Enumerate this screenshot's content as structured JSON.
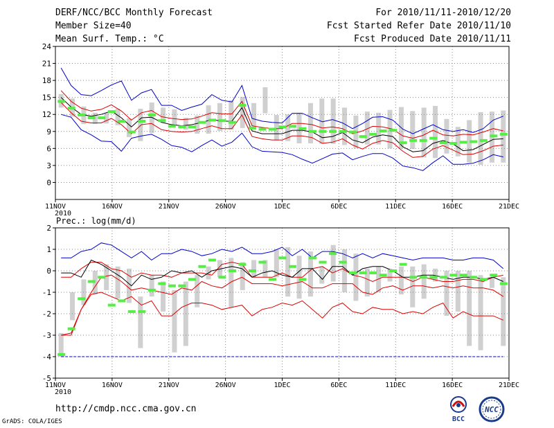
{
  "header": {
    "title": "DERF/NCC/BCC Monthly Forecast",
    "member_size": "Member Size=40",
    "variable1": "Mean Surf. Temp.: °C",
    "period": "For 2010/11/11-2010/12/20",
    "started": "Fcst Started Refer Date 2010/11/10",
    "produced": "Fcst Produced Date 2010/11/11"
  },
  "footer": {
    "url": "http://cmdp.ncc.cma.gov.cn",
    "grads": "GrADS: COLA/IGES",
    "logo_left_text": "BCC",
    "logo_right_text": "NCC"
  },
  "colors": {
    "ensemble_mean": "#000000",
    "inner_bound": "#dd0000",
    "outer_bound": "#0000cc",
    "observed": "#55ee44",
    "spread_box": "#d0d0d0",
    "grid": "#888888"
  },
  "chart_data": [
    {
      "type": "line",
      "title": "Mean Surf. Temp.: °C",
      "xlabel": "",
      "ylabel": "",
      "day_count": 40,
      "ylim": [
        -3,
        24
      ],
      "yticks": [
        0,
        3,
        6,
        9,
        12,
        15,
        18,
        21,
        24
      ],
      "x_tick_days": [
        0,
        5,
        10,
        15,
        20,
        25,
        30,
        35,
        40
      ],
      "x_tick_labels": [
        "11NOV",
        "16NOV",
        "21NOV",
        "26NOV",
        "1DEC",
        "6DEC",
        "11DEC",
        "16DEC",
        "21DEC"
      ],
      "year_label": "2010",
      "grid": true,
      "boxes": {
        "low": [
          13.2,
          11.6,
          10.3,
          10.3,
          10.4,
          10.1,
          8.0,
          7.3,
          8.7,
          10.5,
          10.1,
          9.3,
          8.6,
          8.6,
          9.1,
          9.3,
          9.6,
          9.5,
          12.2,
          7.4,
          7.3,
          6.9,
          6.9,
          6.8,
          6.8,
          6.6,
          6.0,
          6.7,
          6.7,
          6.0,
          6.0,
          5.9,
          4.4,
          4.3,
          5.1,
          4.6,
          3.5,
          3.1,
          3.5,
          3.5
        ],
        "high": [
          15.6,
          14.8,
          13.4,
          12.3,
          12.3,
          13.0,
          11.3,
          13.0,
          14.1,
          13.2,
          12.9,
          11.4,
          11.8,
          13.6,
          14.0,
          14.5,
          15.1,
          14.0,
          16.8,
          11.9,
          12.0,
          12.3,
          14.0,
          14.8,
          14.8,
          13.2,
          11.8,
          12.5,
          12.3,
          12.8,
          13.3,
          12.6,
          13.2,
          13.5,
          11.2,
          9.8,
          11.0,
          12.4,
          12.5,
          12.7
        ]
      },
      "series": [
        {
          "name": "upper-outer",
          "color": "#0000cc",
          "values": [
            20.2,
            17.1,
            15.5,
            15.3,
            16.2,
            17.2,
            17.9,
            14.5,
            15.8,
            16.4,
            13.6,
            13.6,
            12.7,
            13.3,
            13.8,
            15.5,
            14.5,
            14.2,
            17.1,
            11.3,
            10.8,
            10.6,
            10.5,
            12.2,
            12.2,
            11.4,
            10.7,
            11.1,
            10.5,
            9.5,
            10.4,
            11.5,
            11.6,
            11.0,
            9.4,
            8.6,
            9.4,
            10.2,
            9.3,
            9.0,
            9.3,
            8.8,
            9.5,
            11.0,
            11.7
          ]
        },
        {
          "name": "upper-inner",
          "color": "#dd0000",
          "values": [
            16.2,
            14.3,
            13.1,
            12.6,
            12.9,
            13.7,
            12.6,
            11.0,
            12.3,
            12.7,
            11.6,
            11.3,
            11.1,
            11.2,
            11.7,
            12.3,
            12.1,
            12.1,
            14.3,
            10.0,
            9.7,
            9.5,
            9.5,
            10.4,
            10.4,
            10.2,
            9.6,
            9.8,
            9.5,
            8.6,
            9.1,
            9.9,
            9.8,
            9.4,
            8.2,
            7.8,
            8.3,
            9.2,
            8.4,
            8.2,
            8.5,
            8.4,
            8.9,
            9.5,
            9.1
          ]
        },
        {
          "name": "ensemble-mean",
          "color": "#000000",
          "values": [
            15.0,
            13.3,
            12.0,
            11.7,
            12.0,
            12.6,
            11.4,
            9.8,
            11.4,
            11.5,
            10.6,
            10.2,
            10.0,
            10.2,
            10.6,
            11.1,
            10.8,
            10.8,
            13.2,
            9.1,
            8.6,
            8.6,
            8.6,
            9.2,
            9.2,
            8.9,
            7.9,
            8.1,
            8.8,
            7.5,
            7.0,
            8.0,
            8.4,
            8.1,
            6.3,
            5.4,
            5.6,
            6.9,
            7.4,
            6.8,
            5.6,
            5.8,
            6.7,
            7.6,
            7.7
          ]
        },
        {
          "name": "lower-inner",
          "color": "#dd0000",
          "values": [
            14.1,
            12.3,
            10.8,
            10.5,
            10.5,
            11.3,
            10.2,
            8.6,
            10.2,
            10.4,
            9.3,
            9.0,
            8.9,
            9.0,
            9.5,
            10.0,
            9.5,
            9.5,
            11.9,
            8.1,
            7.7,
            7.5,
            7.5,
            8.2,
            8.2,
            7.9,
            6.9,
            7.1,
            7.7,
            6.6,
            5.9,
            6.9,
            7.4,
            7.0,
            5.5,
            4.4,
            4.6,
            5.9,
            6.5,
            5.7,
            4.9,
            5.0,
            5.6,
            6.4,
            6.6
          ]
        },
        {
          "name": "lower-outer",
          "color": "#0000cc",
          "values": [
            12.0,
            11.5,
            9.3,
            8.4,
            7.3,
            7.2,
            5.5,
            7.8,
            8.2,
            8.5,
            7.6,
            6.5,
            6.2,
            5.4,
            6.5,
            7.5,
            6.4,
            7.1,
            8.7,
            6.3,
            5.5,
            5.4,
            5.3,
            4.9,
            4.1,
            3.4,
            4.2,
            5.0,
            5.2,
            4.0,
            4.6,
            5.1,
            5.1,
            4.3,
            2.9,
            2.6,
            2.1,
            3.5,
            4.7,
            3.2,
            3.2,
            3.4,
            4.0,
            4.9,
            4.5
          ]
        }
      ],
      "observed": [
        14.3,
        13.1,
        11.9,
        11.4,
        11.4,
        12.5,
        10.8,
        8.9,
        10.8,
        11.9,
        10.9,
        9.9,
        9.8,
        9.8,
        10.6,
        11.0,
        10.9,
        10.6,
        13.6,
        9.6,
        9.4,
        9.4,
        9.8,
        9.9,
        9.5,
        9.0,
        9.0,
        9.0,
        9.0,
        8.9,
        8.1,
        8.5,
        9.1,
        9.2,
        7.0,
        7.4,
        7.4,
        7.8,
        7.0,
        6.9,
        7.1,
        7.2,
        7.4,
        8.2,
        8.5
      ]
    },
    {
      "type": "line",
      "title": "Prec.: log(mm/d)",
      "xlabel": "",
      "ylabel": "",
      "day_count": 40,
      "ylim": [
        -5,
        2
      ],
      "yticks": [
        -5,
        -4,
        -3,
        -2,
        -1,
        0,
        1,
        2
      ],
      "x_tick_days": [
        0,
        5,
        10,
        15,
        20,
        25,
        30,
        35,
        40
      ],
      "x_tick_labels": [
        "11NOV",
        "16NOV",
        "21NOV",
        "26NOV",
        "1DEC",
        "6DEC",
        "11DEC",
        "16DEC",
        "21DEC"
      ],
      "year_label": "2010",
      "grid": true,
      "floor_value": -4,
      "boxes": {
        "low": [
          -4,
          -2.3,
          -1.6,
          -1.1,
          -0.9,
          -1.3,
          -1.5,
          -3.6,
          -1.2,
          -1.9,
          -3.8,
          -3.5,
          -1.7,
          -0.4,
          -0.3,
          -1.7,
          -0.9,
          -0.3,
          -0.3,
          -0.3,
          -1.2,
          -1.3,
          -1.2,
          -0.6,
          -0.5,
          -1.0,
          -1.4,
          -1.2,
          -1.0,
          -0.5,
          -1.1,
          -1.7,
          -1.3,
          -0.5,
          -2.1,
          -1.9,
          -3.5,
          -3.7,
          -0.8,
          -3.5
        ],
        "high": [
          -2.9,
          -1.0,
          -0.4,
          0.0,
          0.3,
          0.2,
          0.1,
          -1.2,
          -0.2,
          -0.5,
          -0.9,
          -0.5,
          -0.2,
          0.2,
          0.5,
          0.6,
          0.4,
          0.5,
          0.5,
          1.0,
          1.1,
          0.7,
          0.9,
          0.2,
          1.2,
          1.0,
          0.8,
          0.1,
          0.2,
          0.1,
          0.2,
          0.2,
          0.3,
          0.1,
          0.0,
          0.0,
          0.0,
          -0.2,
          -0.3,
          -0.3
        ]
      },
      "series": [
        {
          "name": "upper-outer",
          "color": "#0000cc",
          "values": [
            0.6,
            0.6,
            0.9,
            1.0,
            1.3,
            1.2,
            0.9,
            0.6,
            0.9,
            0.5,
            0.8,
            0.8,
            1.0,
            0.9,
            0.7,
            0.8,
            1.0,
            0.9,
            1.1,
            0.8,
            0.8,
            0.9,
            1.1,
            0.7,
            1.0,
            0.6,
            0.9,
            0.9,
            0.8,
            0.6,
            0.8,
            0.6,
            0.8,
            0.7,
            0.6,
            0.5,
            0.6,
            0.6,
            0.6,
            0.5,
            0.5,
            0.6,
            0.6,
            0.5,
            0.1
          ]
        },
        {
          "name": "upper-inner",
          "color": "#dd0000",
          "values": [
            -0.3,
            -0.3,
            0.1,
            0.4,
            0.4,
            0.1,
            0.0,
            -0.3,
            -0.1,
            -0.2,
            -0.2,
            -0.3,
            -0.1,
            -0.1,
            -0.1,
            -0.2,
            0.3,
            0.4,
            0.3,
            -0.3,
            -0.3,
            -0.3,
            -0.1,
            -0.3,
            -0.3,
            0.1,
            0.2,
            -0.1,
            0.1,
            -0.2,
            -0.3,
            -0.5,
            -0.3,
            -0.3,
            -0.3,
            -0.5,
            -0.3,
            -0.4,
            -0.5,
            -0.5,
            -0.4,
            -0.4,
            -0.5,
            -0.3,
            -0.2
          ]
        },
        {
          "name": "ensemble-mean",
          "color": "#000000",
          "values": [
            -0.1,
            -0.1,
            -0.3,
            0.5,
            0.3,
            0.0,
            -0.3,
            -0.7,
            -0.2,
            -0.4,
            -0.3,
            0.0,
            -0.1,
            0.0,
            -0.3,
            0.0,
            0.1,
            0.2,
            0.1,
            -0.3,
            -0.1,
            0.0,
            -0.2,
            -0.3,
            0.1,
            0.1,
            -0.4,
            0.2,
            0.2,
            -0.2,
            0.1,
            0.2,
            0.2,
            0.0,
            -0.3,
            -0.3,
            -0.2,
            -0.2,
            -0.3,
            -0.4,
            -0.3,
            -0.3,
            -0.4,
            -0.3,
            -0.5
          ]
        },
        {
          "name": "lower-inner",
          "color": "#dd0000",
          "values": [
            -3.0,
            -3.0,
            -1.8,
            -1.0,
            -0.3,
            -0.2,
            -0.5,
            -0.9,
            -0.8,
            -0.9,
            -1.0,
            -1.1,
            -0.8,
            -0.9,
            -0.5,
            -0.7,
            -0.8,
            -0.5,
            -0.3,
            -0.6,
            -0.6,
            -0.6,
            -0.7,
            -0.6,
            -0.5,
            -0.8,
            -0.8,
            -0.6,
            -0.6,
            -0.6,
            -1.0,
            -1.1,
            -0.8,
            -0.7,
            -0.9,
            -0.7,
            -0.7,
            -0.8,
            -0.7,
            -0.8,
            -0.7,
            -0.8,
            -0.8,
            -0.9,
            -1.2
          ]
        },
        {
          "name": "lower-outer",
          "color": "#dd0000",
          "values": [
            -3.0,
            -2.9,
            -1.8,
            -1.1,
            -1.0,
            -1.2,
            -1.4,
            -1.2,
            -1.6,
            -1.4,
            -2.1,
            -2.1,
            -1.7,
            -1.5,
            -1.5,
            -1.6,
            -1.8,
            -1.7,
            -1.6,
            -2.1,
            -1.8,
            -1.7,
            -1.5,
            -1.6,
            -1.4,
            -1.8,
            -2.2,
            -1.7,
            -1.5,
            -1.9,
            -2.0,
            -1.7,
            -1.8,
            -1.8,
            -2.0,
            -1.9,
            -2.0,
            -1.7,
            -1.5,
            -2.2,
            -1.9,
            -2.1,
            -2.1,
            -2.1,
            -2.3
          ]
        }
      ],
      "observed": [
        -3.9,
        -2.7,
        -1.3,
        -0.5,
        -0.3,
        -1.6,
        -1.4,
        -1.9,
        -1.9,
        -0.9,
        -0.6,
        -0.7,
        -0.7,
        -0.4,
        0.2,
        0.5,
        -0.3,
        0.0,
        0.3,
        0.0,
        0.4,
        -0.4,
        0.6,
        0.2,
        -0.4,
        0.6,
        0.4,
        0.8,
        0.4,
        -0.1,
        -0.1,
        -0.1,
        -0.2,
        0.0,
        0.3,
        -0.3,
        -0.3,
        -0.3,
        -0.3,
        -0.2,
        -0.2,
        -0.3,
        -0.4,
        -0.2,
        -0.6
      ]
    }
  ]
}
